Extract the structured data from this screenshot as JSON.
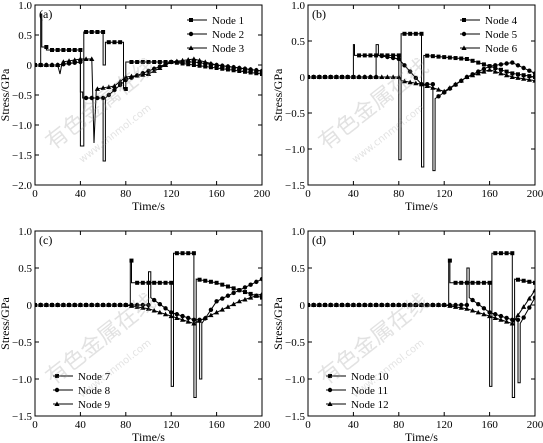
{
  "watermark": {
    "primary": "有色金属在线",
    "secondary": "www.cnnmol.com"
  },
  "chart_data": [
    {
      "type": "line",
      "panel_label": "(a)",
      "xlabel": "Time/s",
      "ylabel": "Stress/GPa",
      "xlim": [
        0,
        200
      ],
      "ylim": [
        -2.0,
        1.0
      ],
      "xticks": [
        0,
        40,
        80,
        120,
        160,
        200
      ],
      "yticks": [
        -2.0,
        -1.5,
        -1.0,
        -0.5,
        0,
        0.5,
        1.0
      ],
      "ytick_labels": [
        "−2.0",
        "−1.5",
        "−1.0",
        "−0.5",
        "0",
        "0.5",
        "1.0"
      ],
      "legend_position": "top-right",
      "series": [
        {
          "name": "Node 1",
          "marker": "square",
          "x": [
            0,
            5,
            5,
            6,
            6,
            10,
            10,
            40,
            40,
            43,
            43,
            60,
            60,
            62,
            62,
            78,
            78,
            80,
            80,
            120,
            140,
            160,
            180,
            200
          ],
          "y": [
            0,
            0,
            0.85,
            0.85,
            0.3,
            0.3,
            0.25,
            0.25,
            -1.35,
            -1.35,
            0.55,
            0.55,
            0.0,
            0.0,
            0.38,
            0.38,
            -0.4,
            -0.4,
            0.05,
            0.05,
            0.0,
            -0.05,
            -0.1,
            -0.15
          ]
        },
        {
          "name": "Node 2",
          "marker": "circle",
          "x": [
            0,
            20,
            40,
            40,
            42,
            42,
            60,
            60,
            62,
            62,
            80,
            100,
            120,
            140,
            160,
            180,
            200
          ],
          "y": [
            0,
            0,
            0.05,
            -0.45,
            -0.45,
            -0.55,
            -0.55,
            -1.6,
            -1.6,
            -0.55,
            -0.25,
            -0.1,
            0.05,
            0.05,
            0.0,
            -0.05,
            -0.1
          ]
        },
        {
          "name": "Node 3",
          "marker": "triangle",
          "x": [
            0,
            20,
            22,
            24,
            40,
            50,
            52,
            54,
            70,
            80,
            100,
            120,
            140,
            160,
            180,
            200
          ],
          "y": [
            0.0,
            0.0,
            -0.15,
            0.05,
            0.1,
            0.1,
            -1.3,
            -0.4,
            -0.35,
            -0.2,
            -0.15,
            0.05,
            0.1,
            0.0,
            -0.05,
            -0.1
          ]
        }
      ]
    },
    {
      "type": "line",
      "panel_label": "(b)",
      "xlabel": "Time/s",
      "ylabel": "Stress/GPa",
      "xlim": [
        0,
        200
      ],
      "ylim": [
        -1.5,
        1.0
      ],
      "xticks": [
        0,
        40,
        80,
        120,
        160,
        200
      ],
      "yticks": [
        -1.5,
        -1.0,
        -0.5,
        0,
        0.5,
        1.0
      ],
      "ytick_labels": [
        "−1.5",
        "−1.0",
        "−0.5",
        "0",
        "0.5",
        "1.0"
      ],
      "legend_position": "top-right",
      "series": [
        {
          "name": "Node 4",
          "marker": "square",
          "x": [
            0,
            40,
            40,
            41,
            41,
            80,
            80,
            82,
            82,
            100,
            100,
            102,
            102,
            140,
            160,
            180,
            200
          ],
          "y": [
            0,
            0,
            0.45,
            0.45,
            0.3,
            0.3,
            -1.15,
            -1.15,
            0.6,
            0.6,
            -1.25,
            -1.25,
            0.3,
            0.25,
            0.15,
            0.05,
            0.0
          ]
        },
        {
          "name": "Node 5",
          "marker": "circle",
          "x": [
            0,
            60,
            60,
            62,
            62,
            80,
            100,
            110,
            110,
            112,
            112,
            140,
            160,
            180,
            200
          ],
          "y": [
            0,
            0,
            0.45,
            0.45,
            0.3,
            0.25,
            -0.1,
            -0.1,
            -1.3,
            -1.3,
            -0.3,
            0.0,
            0.15,
            0.2,
            0.05
          ]
        },
        {
          "name": "Node 6",
          "marker": "triangle",
          "x": [
            0,
            80,
            82,
            100,
            120,
            140,
            160,
            180,
            200
          ],
          "y": [
            0,
            0,
            -0.05,
            -0.1,
            -0.2,
            0.0,
            0.1,
            0.0,
            -0.05
          ]
        }
      ]
    },
    {
      "type": "line",
      "panel_label": "(c)",
      "xlabel": "Time/s",
      "ylabel": "Stress/GPa",
      "xlim": [
        0,
        200
      ],
      "ylim": [
        -1.5,
        1.0
      ],
      "xticks": [
        0,
        40,
        80,
        120,
        160,
        200
      ],
      "yticks": [
        -1.5,
        -1.0,
        -0.5,
        0,
        0.5,
        1.0
      ],
      "ytick_labels": [
        "−1.5",
        "−1.0",
        "−0.5",
        "0",
        "0.5",
        "1.0"
      ],
      "legend_position": "bottom-left",
      "series": [
        {
          "name": "Node 7",
          "marker": "square",
          "x": [
            0,
            84,
            84,
            85,
            85,
            120,
            120,
            122,
            122,
            140,
            140,
            142,
            142,
            160,
            180,
            200
          ],
          "y": [
            0,
            0,
            0.6,
            0.6,
            0.3,
            0.3,
            -1.1,
            -1.1,
            0.7,
            0.7,
            -1.25,
            -1.25,
            0.35,
            0.3,
            0.2,
            0.1
          ]
        },
        {
          "name": "Node 8",
          "marker": "circle",
          "x": [
            0,
            100,
            100,
            102,
            102,
            120,
            140,
            145,
            145,
            147,
            147,
            160,
            180,
            200
          ],
          "y": [
            0,
            0,
            0.45,
            0.45,
            0.1,
            -0.1,
            -0.2,
            -0.2,
            -1.0,
            -1.0,
            -0.25,
            0.05,
            0.2,
            0.35
          ]
        },
        {
          "name": "Node 9",
          "marker": "triangle",
          "x": [
            0,
            80,
            100,
            120,
            140,
            160,
            180,
            200
          ],
          "y": [
            0,
            0,
            -0.05,
            -0.15,
            -0.25,
            -0.1,
            0.05,
            0.15
          ]
        }
      ]
    },
    {
      "type": "line",
      "panel_label": "(d)",
      "xlabel": "Time/s",
      "ylabel": "Stress/GPa",
      "xlim": [
        0,
        200
      ],
      "ylim": [
        -1.5,
        1.0
      ],
      "xticks": [
        0,
        40,
        80,
        120,
        160,
        200
      ],
      "yticks": [
        -1.5,
        -1.0,
        -0.5,
        0,
        0.5,
        1.0
      ],
      "ytick_labels": [
        "−1.5",
        "−1.0",
        "−0.5",
        "0",
        "0.5",
        "1.0"
      ],
      "legend_position": "bottom-left",
      "series": [
        {
          "name": "Node 10",
          "marker": "square",
          "x": [
            0,
            124,
            124,
            125,
            125,
            160,
            160,
            162,
            162,
            180,
            180,
            182,
            182,
            200
          ],
          "y": [
            0,
            0,
            0.6,
            0.6,
            0.3,
            0.3,
            -1.1,
            -1.1,
            0.7,
            0.7,
            -1.25,
            -1.25,
            0.35,
            0.3
          ]
        },
        {
          "name": "Node 11",
          "marker": "circle",
          "x": [
            0,
            140,
            140,
            142,
            142,
            160,
            180,
            185,
            185,
            187,
            187,
            200
          ],
          "y": [
            0,
            0,
            0.5,
            0.5,
            0.1,
            -0.1,
            -0.2,
            -0.2,
            -1.05,
            -1.05,
            -0.25,
            0.1
          ]
        },
        {
          "name": "Node 12",
          "marker": "triangle",
          "x": [
            0,
            120,
            140,
            160,
            180,
            200
          ],
          "y": [
            0,
            0,
            -0.05,
            -0.15,
            -0.25,
            0.2
          ]
        }
      ]
    }
  ]
}
